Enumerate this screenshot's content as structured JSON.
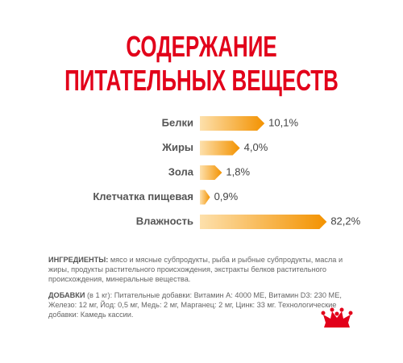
{
  "chart_data": {
    "type": "bar",
    "orientation": "horizontal",
    "title": [
      "СОДЕРЖАНИЕ",
      "ПИТАТЕЛЬНЫХ ВЕЩЕСТВ"
    ],
    "categories": [
      "Белки",
      "Жиры",
      "Зола",
      "Клетчатка пищевая",
      "Влажность"
    ],
    "values": [
      10.1,
      4.0,
      1.8,
      0.9,
      82.2
    ],
    "value_labels": [
      "10,1%",
      "4,0%",
      "1,8%",
      "0,9%",
      "82,2%"
    ],
    "color": "#f39200"
  },
  "ingredients": {
    "label": "ИНГРЕДИЕНТЫ:",
    "text": "мясо и мясные субпродукты, рыба и рыбные субпродукты, масла и жиры, продукты растительного происхождения, экстракты белков растительного происхождения, минеральные вещества."
  },
  "additives": {
    "label": "ДОБАВКИ",
    "text": "(в 1 кг): Питательные добавки: Витамин А: 4000 МЕ, Витамин D3: 230 МЕ, Железо: 12 мг, Йод: 0,5 мг, Медь: 2 мг, Марганец: 2 мг, Цинк: 33 мг. Технологические добавки: Камедь кассии."
  }
}
